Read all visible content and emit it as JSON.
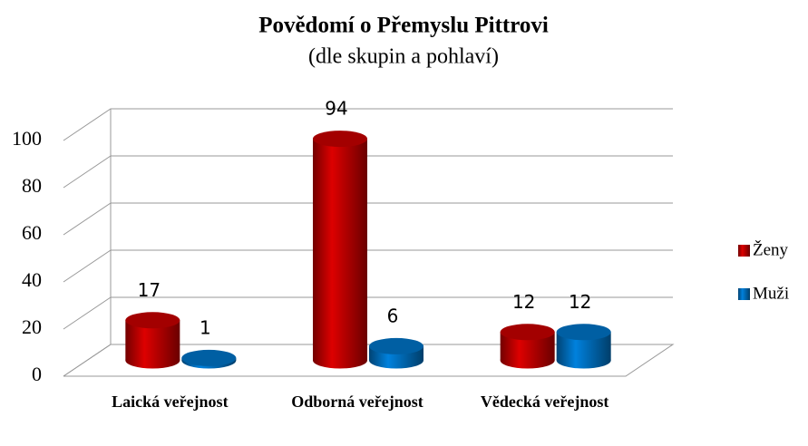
{
  "chart_data": {
    "type": "bar3d",
    "title": "Povědomí o Přemyslu Pittrovi",
    "subtitle": "(dle skupin a pohlaví)",
    "categories": [
      "Laická veřejnost",
      "Odborná veřejnost",
      "Vědecká veřejnost"
    ],
    "series": [
      {
        "name": "Ženy",
        "color": "#c00000",
        "values": [
          17,
          94,
          12
        ]
      },
      {
        "name": "Muži",
        "color": "#0070c0",
        "values": [
          1,
          6,
          12
        ]
      }
    ],
    "ylim": [
      0,
      100
    ],
    "yticks": [
      0,
      20,
      40,
      60,
      80,
      100
    ],
    "grid": true,
    "legend": "right"
  }
}
